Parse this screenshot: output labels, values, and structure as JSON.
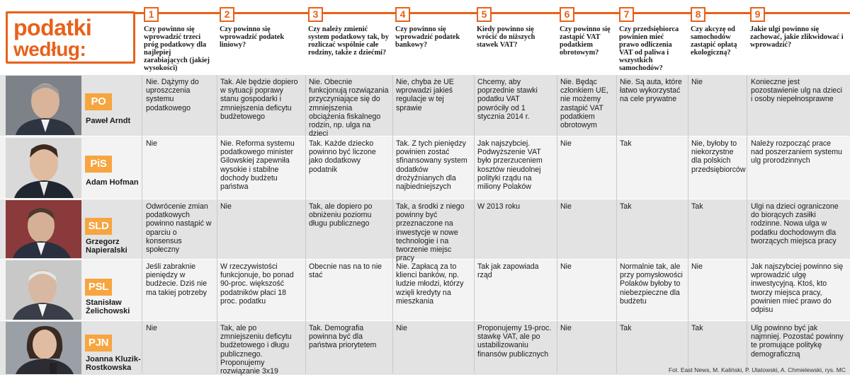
{
  "title": {
    "line1": "podatki",
    "line2": "według:"
  },
  "questions": [
    {
      "num": "1",
      "text": "Czy powinno się wprowadzić trzeci próg podatkowy dla najlepiej zarabiających (jakiej wysokości)"
    },
    {
      "num": "2",
      "text": "Czy powinno się wprowadzić podatek liniowy?"
    },
    {
      "num": "3",
      "text": "Czy należy zmienić system podatkowy tak, by rozliczać wspólnie całe rodziny, także z dziećmi?"
    },
    {
      "num": "4",
      "text": "Czy powinno się wprowadzić podatek bankowy?"
    },
    {
      "num": "5",
      "text": "Kiedy powinno się wrócić do niższych stawek VAT?"
    },
    {
      "num": "6",
      "text": "Czy powinno się zastąpić VAT podatkiem obrotowym?"
    },
    {
      "num": "7",
      "text": "Czy przedsiębiorca powinien mieć prawo odliczenia VAT od paliwa i wszystkich samochodów?"
    },
    {
      "num": "8",
      "text": "Czy akcyzę od samochodów zastąpić opłatą ekologiczną?"
    },
    {
      "num": "9",
      "text": "Jakie ulgi powinno się zachować, jakie zlikwidować i wprowadzić?"
    }
  ],
  "rows": [
    {
      "party": "PO",
      "name": "Paweł Arndt",
      "answers": [
        "Nie. Dążymy do uproszczenia systemu podatkowego",
        "Tak. Ale będzie dopiero w sytuacji poprawy stanu gospodarki i zmniejszenia deficytu budżetowego",
        "Nie. Obecnie funkcjonują rozwiązania przyczyniające się do zmniejszenia obciążenia fiskalnego rodzin, np. ulga na dzieci",
        "Nie, chyba że UE wprowadzi jakieś regulacje w tej sprawie",
        "Chcemy, aby poprzednie stawki podatku VAT powróciły od 1 stycznia 2014 r.",
        "Nie. Będąc członkiem UE, nie możemy zastąpić VAT podatkiem obrotowym",
        "Nie. Są auta, które łatwo wykorzystać na cele prywatne",
        "Nie",
        "Konieczne jest pozostawienie ulg na dzieci i osoby niepełnosprawne"
      ]
    },
    {
      "party": "PiS",
      "name": "Adam Hofman",
      "answers": [
        "Nie",
        "Nie. Reforma systemu podatkowego minister Gilowskiej zapewniła wysokie i stabilne dochody budżetu państwa",
        "Tak. Każde dziecko powinno być liczone jako dodatkowy podatnik",
        "Tak. Z tych pieniędzy powinien zostać sfinansowany system dodatków drożyźnianych dla najbiedniejszych",
        "Jak najszybciej. Podwyższenie VAT było przerzuceniem kosztów nieudolnej polityki rządu na miliony Polaków",
        "Nie",
        "Tak",
        "Nie, byłoby to niekorzystne dla polskich przedsiębiorców",
        "Należy rozpocząć prace nad poszerzaniem systemu ulg prorodzinnych"
      ]
    },
    {
      "party": "SLD",
      "name": "Grzegorz Napieralski",
      "answers": [
        "Odwrócenie zmian podatkowych powinno nastąpić w oparciu o konsensus społeczny",
        "Nie",
        "Tak, ale dopiero po obniżeniu poziomu długu publicznego",
        "Tak, a środki z niego powinny być przeznaczone na inwestycje w nowe technologie i na tworzenie miejsc pracy",
        "W 2013 roku",
        "Nie",
        "Tak",
        "Tak",
        "Ulgi na dzieci ograniczone do biorących zasiłki rodzinne. Nowa ulga w podatku dochodowym dla tworzących miejsca pracy"
      ]
    },
    {
      "party": "PSL",
      "name": "Stanisław Żelichowski",
      "answers": [
        "Jeśli zabraknie pieniędzy w budżecie. Dziś nie ma takiej potrzeby",
        "W rzeczywistości funkcjonuje, bo ponad 90-proc. większość podatników płaci 18 proc. podatku",
        "Obecnie nas na to nie stać",
        "Nie. Zapłacą za to klienci banków, np. ludzie młodzi, którzy wzięli kredyty na mieszkania",
        "Tak jak zapowiada rząd",
        "Nie",
        "Normalnie tak, ale przy pomysłowości Polaków byłoby to niebezpieczne dla budżetu",
        "Nie",
        "Jak najszybciej powinno się wprowadzić ulgę inwestycyjną. Ktoś, kto tworzy miejsca pracy, powinien mieć prawo do odpisu"
      ]
    },
    {
      "party": "PJN",
      "name": "Joanna Kluzik-Rostkowska",
      "answers": [
        "Nie",
        "Tak, ale po zmniejszeniu deficytu budżetowego i długu publicznego. Proponujemy rozwiązanie 3x19",
        "Tak. Demografia powinna być dla państwa priorytetem",
        "Nie",
        "Proponujemy 19-proc. stawkę VAT, ale po ustabilizowaniu finansów publicznych",
        "Nie",
        "Tak",
        "Tak",
        "Ulg powinno być jak najmniej. Pozostać powinny te promujące politykę demograficzną"
      ]
    }
  ],
  "credit": "Fot. East News, M. Kaliński, P. Ulatowski, A. Chmielewski, rys. MC",
  "colors": {
    "accent": "#e8611a",
    "party_badge": "#f6a540",
    "row_shaded": "#e3e3e3",
    "row_light": "#f3f3f3"
  }
}
